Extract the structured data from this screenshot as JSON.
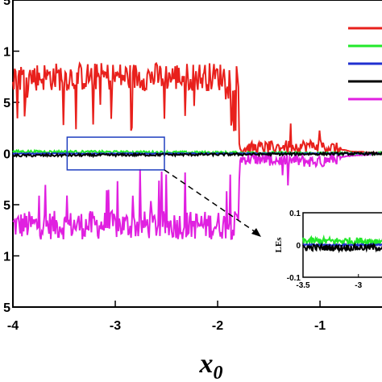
{
  "chart_data": {
    "type": "line",
    "xlabel": "x",
    "xlabel_sub": "0",
    "xlim": [
      -4.0,
      -0.3
    ],
    "ylim": [
      -1.5,
      1.5
    ],
    "xticks": [
      "-4",
      "-3",
      "-2",
      "-1"
    ],
    "yticks": [
      "5",
      "1",
      "5",
      "0",
      "5",
      "1",
      "5"
    ],
    "grid": false,
    "legend": "top-right",
    "legend_swatches": 5,
    "series": [
      {
        "color": "#e8201c",
        "trend": [
          [
            -4.0,
            0.75
          ],
          [
            -1.8,
            0.75
          ],
          [
            -1.78,
            0.05
          ],
          [
            -1.0,
            0.08
          ],
          [
            -0.7,
            0.02
          ],
          [
            -0.3,
            0.0
          ]
        ]
      },
      {
        "color": "#22e82a",
        "trend": [
          [
            -4.0,
            0.02
          ],
          [
            -0.3,
            0.0
          ]
        ]
      },
      {
        "color": "#2030d0",
        "trend": [
          [
            -4.0,
            0.0
          ],
          [
            -0.3,
            0.0
          ]
        ]
      },
      {
        "color": "#000000",
        "trend": [
          [
            -4.0,
            -0.02
          ],
          [
            -0.3,
            0.0
          ]
        ]
      },
      {
        "color": "#e020e0",
        "trend": [
          [
            -4.0,
            -0.7
          ],
          [
            -1.8,
            -0.7
          ],
          [
            -1.78,
            -0.05
          ],
          [
            -1.0,
            -0.08
          ],
          [
            -0.7,
            -0.02
          ],
          [
            -0.3,
            0.0
          ]
        ]
      }
    ],
    "zoom_box": {
      "x": [
        -3.47,
        -2.52
      ],
      "y": [
        -0.16,
        0.16
      ],
      "color": "#2040c0"
    },
    "inset": {
      "ylabel": "LEs",
      "xlim": [
        -3.5,
        -2.7
      ],
      "ylim": [
        -0.1,
        0.1
      ],
      "xticks": [
        "-3.5",
        "-3"
      ],
      "yticks": [
        "0.1",
        "0",
        "-0.1"
      ],
      "series_colors": [
        "#22e82a",
        "#2030d0",
        "#000000"
      ]
    }
  }
}
